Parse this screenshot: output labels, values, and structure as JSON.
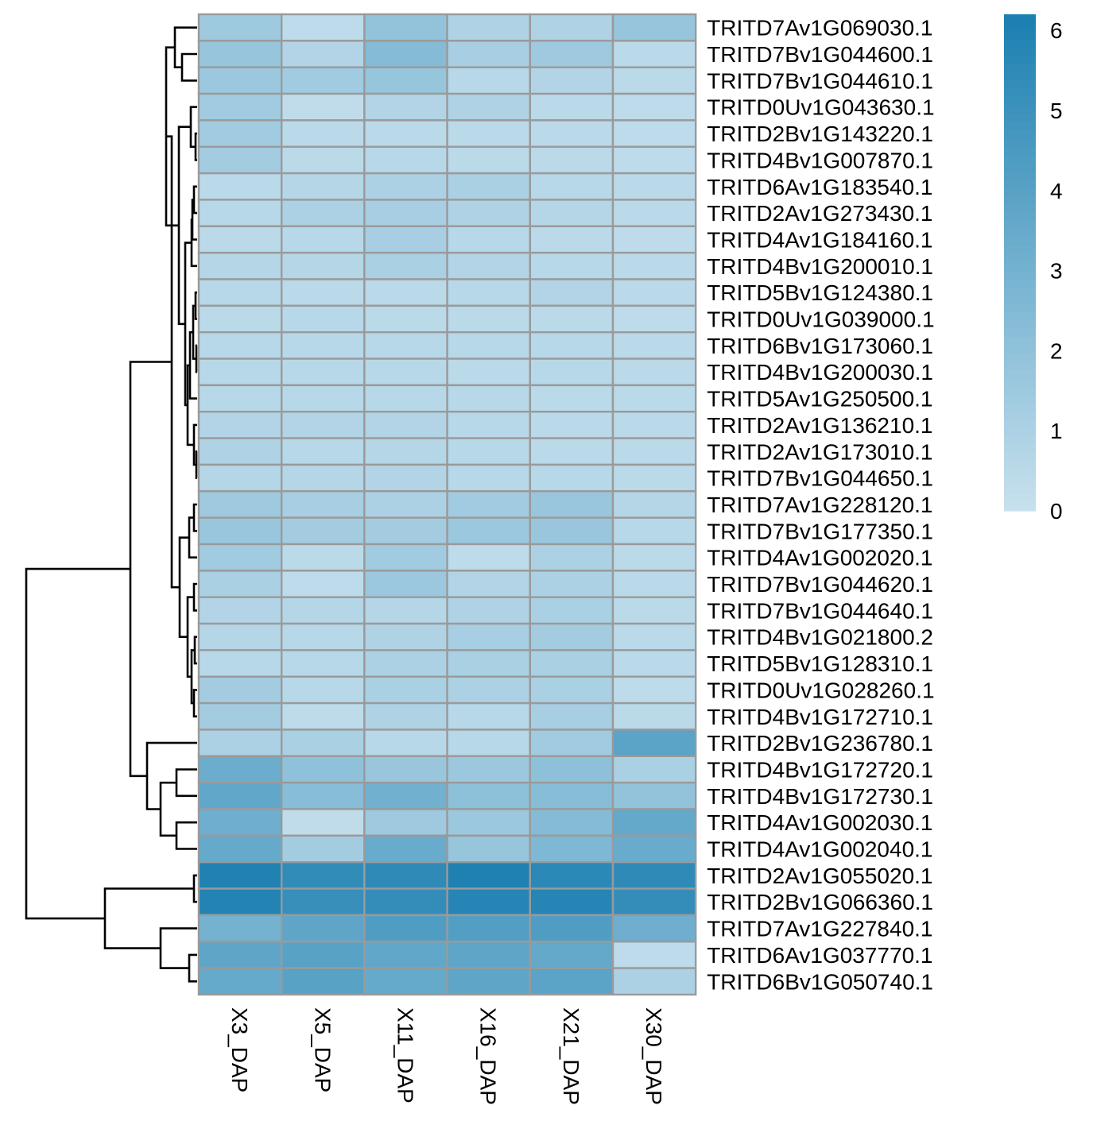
{
  "chart_data": {
    "type": "heatmap",
    "title": "",
    "xlabel": "",
    "ylabel": "",
    "columns": [
      "X3_DAP",
      "X5_DAP",
      "X11_DAP",
      "X16_DAP",
      "X21_DAP",
      "X30_DAP"
    ],
    "rows": [
      "TRITD7Av1G069030.1",
      "TRITD7Bv1G044600.1",
      "TRITD7Bv1G044610.1",
      "TRITD0Uv1G043630.1",
      "TRITD2Bv1G143220.1",
      "TRITD4Bv1G007870.1",
      "TRITD6Av1G183540.1",
      "TRITD2Av1G273430.1",
      "TRITD4Av1G184160.1",
      "TRITD4Bv1G200010.1",
      "TRITD5Bv1G124380.1",
      "TRITD0Uv1G039000.1",
      "TRITD6Bv1G173060.1",
      "TRITD4Bv1G200030.1",
      "TRITD5Av1G250500.1",
      "TRITD2Av1G136210.1",
      "TRITD2Av1G173010.1",
      "TRITD7Bv1G044650.1",
      "TRITD7Av1G228120.1",
      "TRITD7Bv1G177350.1",
      "TRITD4Av1G002020.1",
      "TRITD7Bv1G044620.1",
      "TRITD7Bv1G044640.1",
      "TRITD4Bv1G021800.2",
      "TRITD5Bv1G128310.1",
      "TRITD0Uv1G028260.1",
      "TRITD4Bv1G172710.1",
      "TRITD2Bv1G236780.1",
      "TRITD4Bv1G172720.1",
      "TRITD4Bv1G172730.1",
      "TRITD4Av1G002030.1",
      "TRITD4Av1G002040.1",
      "TRITD2Av1G055020.1",
      "TRITD2Bv1G066360.1",
      "TRITD7Av1G227840.1",
      "TRITD6Av1G037770.1",
      "TRITD6Bv1G050740.1"
    ],
    "values": [
      [
        1.5,
        0.4,
        1.9,
        0.9,
        0.9,
        1.8
      ],
      [
        1.8,
        0.8,
        2.4,
        1.2,
        1.5,
        0.5
      ],
      [
        1.6,
        1.4,
        1.8,
        0.6,
        0.8,
        0.5
      ],
      [
        1.4,
        0.3,
        0.8,
        0.9,
        0.5,
        0.4
      ],
      [
        1.4,
        0.5,
        0.5,
        0.5,
        0.5,
        0.4
      ],
      [
        1.3,
        0.5,
        0.6,
        0.5,
        0.5,
        0.4
      ],
      [
        0.5,
        0.7,
        1.0,
        1.1,
        0.6,
        0.5
      ],
      [
        0.6,
        1.0,
        1.2,
        0.9,
        0.7,
        0.5
      ],
      [
        0.5,
        0.6,
        1.2,
        0.6,
        0.5,
        0.4
      ],
      [
        0.7,
        0.7,
        1.1,
        0.8,
        0.6,
        0.5
      ],
      [
        0.6,
        0.5,
        0.5,
        0.6,
        0.8,
        0.5
      ],
      [
        0.5,
        0.6,
        0.5,
        0.5,
        0.5,
        0.4
      ],
      [
        0.6,
        0.6,
        0.6,
        0.6,
        0.6,
        0.5
      ],
      [
        0.6,
        0.6,
        0.6,
        0.5,
        0.6,
        0.5
      ],
      [
        0.6,
        0.6,
        0.6,
        0.6,
        0.5,
        0.5
      ],
      [
        0.8,
        0.8,
        0.8,
        0.6,
        0.5,
        0.5
      ],
      [
        0.9,
        0.6,
        0.7,
        0.6,
        0.5,
        0.5
      ],
      [
        0.7,
        0.7,
        0.8,
        0.6,
        0.6,
        0.5
      ],
      [
        1.5,
        1.2,
        1.0,
        1.4,
        1.7,
        0.7
      ],
      [
        1.7,
        1.3,
        1.3,
        1.6,
        1.7,
        0.6
      ],
      [
        1.4,
        0.5,
        1.4,
        0.4,
        1.0,
        0.5
      ],
      [
        1.1,
        0.4,
        1.6,
        0.8,
        1.0,
        0.5
      ],
      [
        0.8,
        0.7,
        0.7,
        0.9,
        1.1,
        0.5
      ],
      [
        0.7,
        0.6,
        0.9,
        1.2,
        1.3,
        0.5
      ],
      [
        0.6,
        0.6,
        1.0,
        1.1,
        1.1,
        0.5
      ],
      [
        1.3,
        0.6,
        1.1,
        1.0,
        1.1,
        0.4
      ],
      [
        1.3,
        0.4,
        0.9,
        0.6,
        1.2,
        0.5
      ],
      [
        1.0,
        1.1,
        0.6,
        0.6,
        1.4,
        3.9
      ],
      [
        3.3,
        2.0,
        1.7,
        1.6,
        2.1,
        1.1
      ],
      [
        3.7,
        2.3,
        3.1,
        2.1,
        2.3,
        1.9
      ],
      [
        3.2,
        0.3,
        1.5,
        1.6,
        2.4,
        3.6
      ],
      [
        3.5,
        1.3,
        3.4,
        1.8,
        2.6,
        3.4
      ],
      [
        6.0,
        5.4,
        5.5,
        6.1,
        5.6,
        5.5
      ],
      [
        5.9,
        5.2,
        5.3,
        5.8,
        5.8,
        5.3
      ],
      [
        3.0,
        3.8,
        4.3,
        4.2,
        4.3,
        3.2
      ],
      [
        3.8,
        4.0,
        3.7,
        3.8,
        3.6,
        0.4
      ],
      [
        3.5,
        4.0,
        3.5,
        3.8,
        3.9,
        1.0
      ]
    ],
    "colorbar": {
      "min": 0,
      "max": 6.2,
      "ticks": [
        0,
        1,
        2,
        3,
        4,
        5,
        6
      ],
      "tick_labels": [
        "0",
        "1",
        "2",
        "3",
        "4",
        "5",
        "6"
      ],
      "low_color": "#c8e1ee",
      "high_color": "#1b7fb0"
    },
    "cell_border_color": "#9a9a9a",
    "row_dendrogram": true,
    "legend_position": "right"
  }
}
